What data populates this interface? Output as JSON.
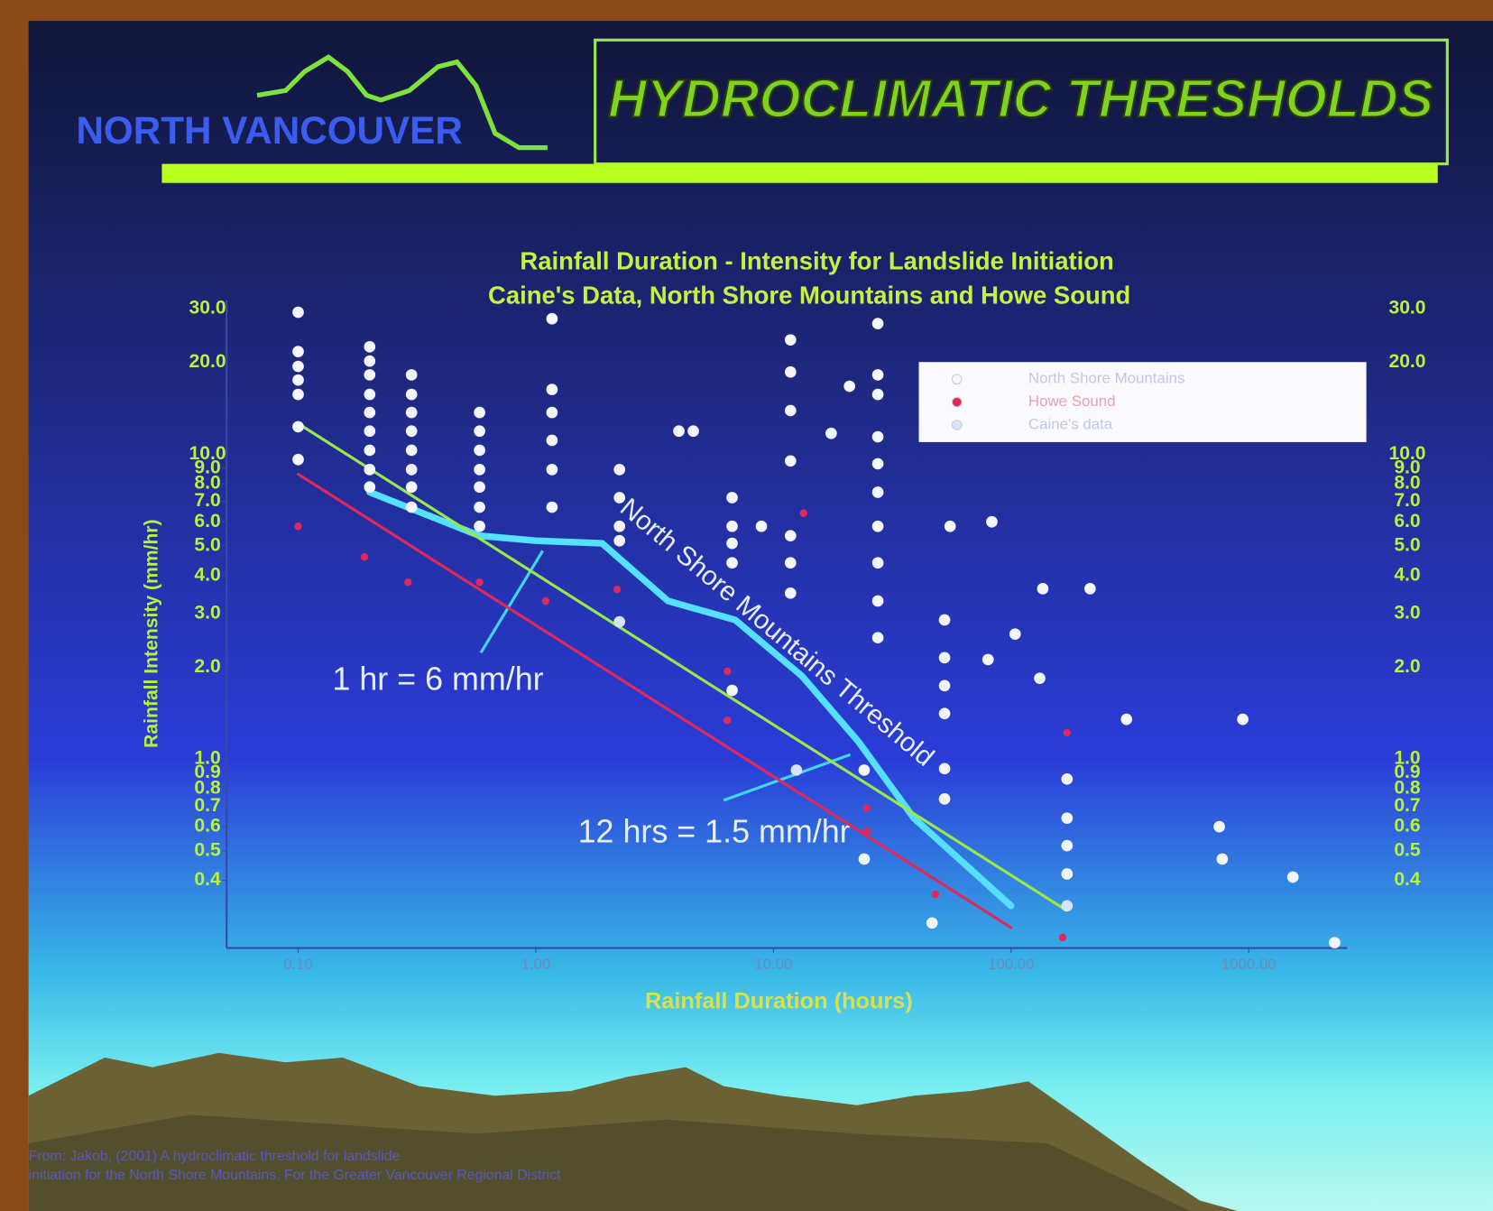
{
  "header": {
    "logo": "NORTH VANCOUVER",
    "title": "HYDROCLIMATIC THRESHOLDS"
  },
  "chart_data": {
    "type": "scatter",
    "title": "Rainfall Duration - Intensity for Landslide Initiation",
    "subtitle": "Caine's Data, North Shore Mountains and Howe Sound",
    "x_label": "Rainfall Duration (hours)",
    "y_label": "Rainfall Intensity (mm/hr)",
    "log_x": true,
    "log_y": true,
    "legend": "upper right",
    "xlim": [
      0.05,
      2600
    ],
    "ylim": [
      0.24,
      32
    ],
    "xticks": [
      {
        "value": 0.1,
        "label": "0.10"
      },
      {
        "value": 1,
        "label": "1.00"
      },
      {
        "value": 10,
        "label": "10.00"
      },
      {
        "value": 100,
        "label": "100.00"
      },
      {
        "value": 1000,
        "label": "1000.00"
      }
    ],
    "yticks": [
      0.4,
      0.5,
      0.6,
      0.7,
      0.8,
      0.9,
      {
        "value": 1,
        "label": "1.0"
      },
      {
        "value": 2,
        "label": "2.0"
      },
      {
        "value": 3,
        "label": "3.0"
      },
      {
        "value": 4,
        "label": "4.0"
      },
      {
        "value": 5,
        "label": "5.0"
      },
      {
        "value": 6,
        "label": "6.0"
      },
      {
        "value": 7,
        "label": "7.0"
      },
      {
        "value": 8,
        "label": "8.0"
      },
      {
        "value": 9,
        "label": "9.0"
      },
      {
        "value": 10,
        "label": "10.0"
      },
      {
        "value": 20,
        "label": "20.0"
      },
      {
        "value": 30,
        "label": "30.0"
      }
    ],
    "series": [
      {
        "name": "North Shore Mountains",
        "color": "#f4f6ff",
        "x": [
          0.1,
          0.1,
          0.1,
          0.1,
          0.1,
          0.1,
          0.1,
          0.2,
          0.2,
          0.2,
          0.2,
          0.2,
          0.2,
          0.2,
          0.2,
          0.2,
          0.3,
          0.3,
          0.3,
          0.3,
          0.3,
          0.3,
          0.3,
          0.3,
          0.58,
          0.58,
          0.58,
          0.58,
          0.58,
          0.58,
          0.58,
          1.17,
          1.17,
          1.17,
          1.17,
          1.17,
          1.17,
          2.25,
          2.25,
          2.25,
          2.25,
          4.0,
          4.6,
          6.7,
          6.7,
          6.7,
          6.7,
          6.7,
          8.9,
          11.8,
          11.8,
          11.8,
          11.8,
          11.8,
          11.8,
          11.8,
          17.5,
          20.9,
          27.5,
          27.5,
          27.5,
          27.5,
          27.5,
          27.5,
          27.5,
          27.5,
          27.5,
          27.5,
          24.1,
          24.1,
          52.5,
          52.5,
          52.5,
          52.5,
          52.5,
          52.5,
          55.4,
          83,
          80,
          104,
          132,
          136,
          215,
          172,
          172,
          172,
          172,
          306,
          944,
          752,
          774,
          1535,
          2300,
          46.5
        ],
        "y": [
          29.2,
          21.7,
          19.4,
          17.5,
          15.7,
          12.3,
          9.6,
          22.5,
          20.2,
          18.2,
          15.7,
          13.7,
          11.9,
          10.3,
          8.9,
          7.8,
          18.2,
          15.7,
          13.7,
          11.9,
          10.3,
          8.9,
          7.8,
          6.7,
          13.7,
          11.9,
          10.3,
          8.9,
          7.8,
          6.7,
          5.8,
          27.8,
          16.3,
          13.7,
          11.1,
          8.9,
          6.7,
          8.9,
          7.2,
          5.8,
          5.2,
          11.9,
          11.9,
          7.2,
          5.8,
          5.1,
          4.4,
          1.68,
          5.8,
          23.7,
          18.6,
          13.9,
          9.5,
          5.4,
          4.4,
          3.5,
          11.7,
          16.7,
          26.8,
          18.2,
          15.7,
          11.4,
          9.3,
          7.5,
          5.8,
          4.4,
          3.3,
          2.5,
          0.92,
          0.47,
          2.86,
          2.15,
          1.74,
          1.41,
          0.93,
          0.74,
          5.8,
          6.0,
          2.12,
          2.57,
          1.84,
          3.62,
          3.62,
          0.86,
          0.64,
          0.52,
          0.42,
          1.35,
          1.35,
          0.6,
          0.47,
          0.41,
          0.25,
          0.29
        ]
      },
      {
        "name": "Howe Sound",
        "color": "#e0285a",
        "x": [
          0.1,
          0.19,
          0.29,
          0.58,
          1.1,
          2.2,
          6.4,
          6.4,
          13.4,
          24.7,
          24.7,
          48,
          165,
          172
        ],
        "y": [
          5.8,
          4.6,
          3.8,
          3.8,
          3.3,
          3.6,
          1.94,
          1.34,
          6.4,
          0.69,
          0.58,
          0.36,
          0.26,
          1.22
        ]
      },
      {
        "name": "Caine's data",
        "color": "#d8e4ff",
        "x": [
          2.25,
          12.5,
          172
        ],
        "y": [
          2.82,
          0.92,
          0.33
        ]
      }
    ],
    "lines": [
      {
        "name": "North Shore Mountains Threshold",
        "color": "#55e0ff",
        "x": [
          0.2,
          0.58,
          1.0,
          1.9,
          3.6,
          6.9,
          13.2,
          22.8,
          39,
          100
        ],
        "y": [
          7.5,
          5.4,
          5.2,
          5.1,
          3.3,
          2.86,
          1.87,
          1.14,
          0.64,
          0.33
        ]
      },
      {
        "color": "#9be84a",
        "x": [
          0.1,
          170
        ],
        "y": [
          12.6,
          0.32
        ]
      },
      {
        "color": "#e0285a",
        "x": [
          0.1,
          100
        ],
        "y": [
          8.6,
          0.28
        ]
      }
    ],
    "annotations": [
      "1 hr = 6 mm/hr",
      "12 hrs = 1.5 mm/hr"
    ]
  },
  "footer": {
    "citation": [
      "From: Jakob, (2001) A hydroclimatic threshold for landslide",
      "initiation for the North Shore Mountains. For the Greater Vancouver Regional District"
    ]
  }
}
